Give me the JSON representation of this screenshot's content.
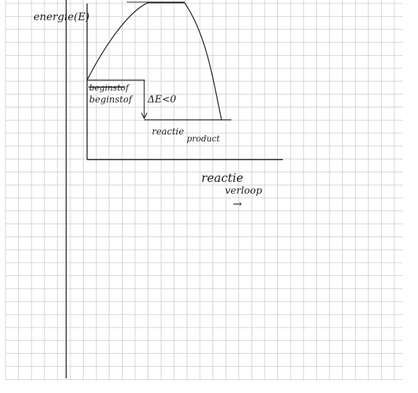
{
  "diagram": {
    "type": "energy-diagram",
    "y_axis_label": "energie(E)",
    "x_axis_label_line1": "reactie",
    "x_axis_label_line2": "verloop",
    "x_axis_arrow": "→",
    "start_label_struck": "beginstof",
    "start_label": "beginstof",
    "delta_label": "ΔE<0",
    "end_label_line1": "reactie",
    "end_label_line2": "product"
  },
  "colors": {
    "grid": "#c9c9c9",
    "ink": "#1f1f1f",
    "paper": "#ffffff"
  }
}
